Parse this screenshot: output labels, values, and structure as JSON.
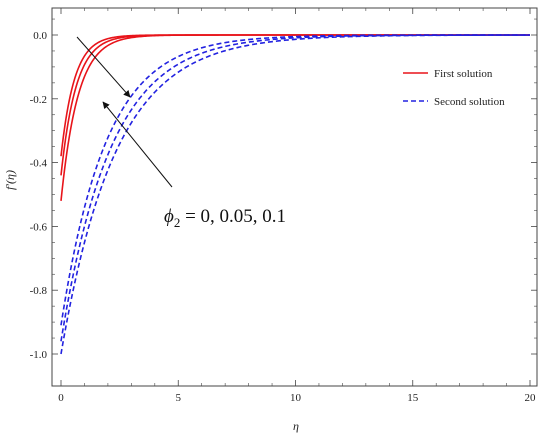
{
  "chart_data": {
    "type": "line",
    "title": "",
    "xlabel": "η",
    "ylabel": "f′(η)",
    "xlim": [
      0,
      20
    ],
    "ylim": [
      -1.1,
      0.05
    ],
    "x_ticks": [
      "0",
      "5",
      "10",
      "15",
      "20"
    ],
    "y_ticks": [
      "0.0",
      "-0.2",
      "-0.4",
      "-0.6",
      "-0.8",
      "-1.0"
    ],
    "grid": false,
    "legend_position": "top-right",
    "legend": [
      "First solution",
      "Second solution"
    ],
    "annotation": "ϕ₂ = 0, 0.05, 0.1",
    "annotation_parts": {
      "symbol": "ϕ",
      "subscript": "2",
      "rest": " = 0, 0.05, 0.1"
    },
    "colors": {
      "first": "#e8141a",
      "second": "#2222e0"
    },
    "series": [
      {
        "name": "First solution",
        "style": "solid",
        "f_prime_at_0": -0.38,
        "decay_rate": 1.75
      },
      {
        "name": "First solution",
        "style": "solid",
        "f_prime_at_0": -0.44,
        "decay_rate": 1.55
      },
      {
        "name": "First solution",
        "style": "solid",
        "f_prime_at_0": -0.52,
        "decay_rate": 1.38
      },
      {
        "name": "Second solution",
        "style": "dashed",
        "f_prime_at_0": -0.91,
        "decay_rate": 0.52
      },
      {
        "name": "Second solution",
        "style": "dashed",
        "f_prime_at_0": -0.96,
        "decay_rate": 0.47
      },
      {
        "name": "Second solution",
        "style": "dashed",
        "f_prime_at_0": -1.0,
        "decay_rate": 0.43
      }
    ]
  }
}
